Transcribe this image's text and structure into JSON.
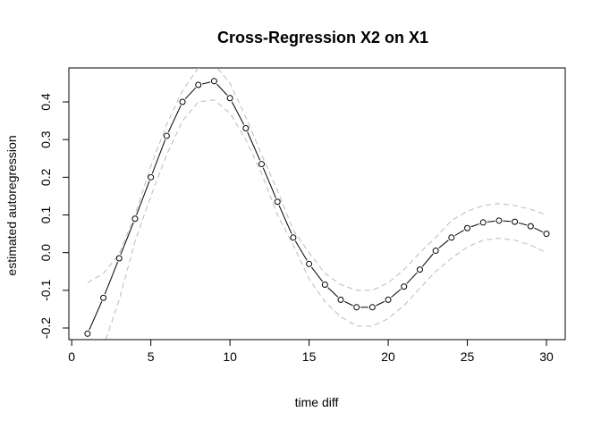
{
  "chart_data": {
    "type": "line",
    "title": "Cross-Regression X2 on X1",
    "xlabel": "time diff",
    "ylabel": "estimated autoregression",
    "xlim": [
      0,
      31
    ],
    "ylim": [
      -0.23,
      0.48
    ],
    "x_ticks": [
      0,
      5,
      10,
      15,
      20,
      25,
      30
    ],
    "y_ticks": [
      -0.2,
      -0.1,
      0.0,
      0.1,
      0.2,
      0.3,
      0.4
    ],
    "x_tick_labels": [
      "0",
      "5",
      "10",
      "15",
      "20",
      "25",
      "30"
    ],
    "y_tick_labels": [
      "-0.2",
      "-0.1",
      "0.0",
      "0.1",
      "0.2",
      "0.3",
      "0.4"
    ],
    "grid": false,
    "legend": "none",
    "x": [
      1,
      2,
      3,
      4,
      5,
      6,
      7,
      8,
      9,
      10,
      11,
      12,
      13,
      14,
      15,
      16,
      17,
      18,
      19,
      20,
      21,
      22,
      23,
      24,
      25,
      26,
      27,
      28,
      29,
      30
    ],
    "series": [
      {
        "role": "estimate",
        "style": "points-and-line",
        "color": "#000000",
        "values": [
          -0.215,
          -0.12,
          -0.015,
          0.09,
          0.2,
          0.31,
          0.4,
          0.445,
          0.455,
          0.41,
          0.33,
          0.235,
          0.135,
          0.04,
          -0.03,
          -0.085,
          -0.125,
          -0.145,
          -0.145,
          -0.125,
          -0.09,
          -0.045,
          0.005,
          0.04,
          0.065,
          0.08,
          0.085,
          0.082,
          0.07,
          0.05
        ]
      },
      {
        "role": "upper-band",
        "style": "dashed",
        "color": "#bbbbbb",
        "values": [
          -0.08,
          -0.055,
          -0.003,
          0.1,
          0.23,
          0.34,
          0.43,
          0.49,
          0.5,
          0.45,
          0.36,
          0.26,
          0.165,
          0.06,
          0.0,
          -0.055,
          -0.085,
          -0.1,
          -0.1,
          -0.08,
          -0.045,
          0.0,
          0.04,
          0.085,
          0.11,
          0.125,
          0.13,
          0.125,
          0.115,
          0.1
        ]
      },
      {
        "role": "lower-band",
        "style": "dashed",
        "color": "#bbbbbb",
        "values": [
          -0.31,
          -0.25,
          -0.125,
          0.03,
          0.15,
          0.26,
          0.35,
          0.4,
          0.405,
          0.37,
          0.3,
          0.21,
          0.1,
          0.02,
          -0.07,
          -0.13,
          -0.17,
          -0.195,
          -0.195,
          -0.175,
          -0.14,
          -0.095,
          -0.05,
          -0.015,
          0.015,
          0.033,
          0.038,
          0.033,
          0.02,
          0.0
        ]
      }
    ]
  }
}
